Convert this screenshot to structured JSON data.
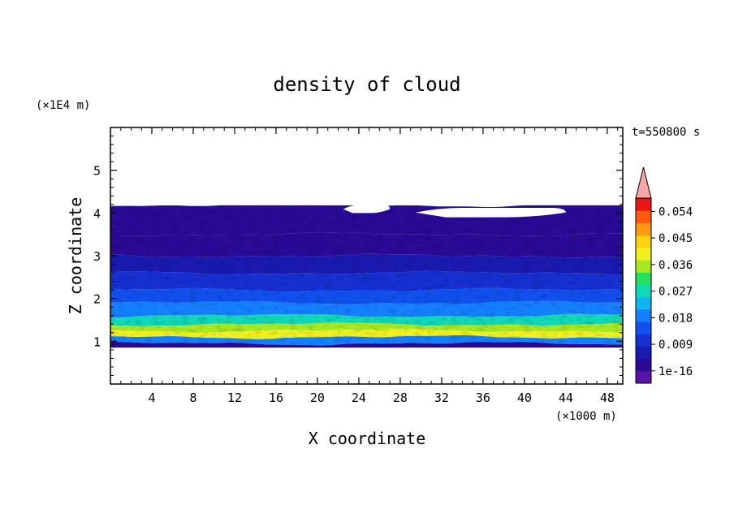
{
  "chart_data": {
    "type": "heatmap",
    "title": "density of cloud",
    "xlabel": "X coordinate",
    "ylabel": "Z coordinate",
    "x_unit": "(×1000 m)",
    "y_unit": "(×1E4 m)",
    "time_label": "t=550800 s",
    "xlim": [
      0,
      49.5
    ],
    "ylim": [
      0,
      6
    ],
    "x_ticks": [
      4,
      8,
      12,
      16,
      20,
      24,
      28,
      32,
      36,
      40,
      44,
      48
    ],
    "y_ticks": [
      1,
      2,
      3,
      4,
      5
    ],
    "colorbar": {
      "levels": [
        1e-16,
        0.0045,
        0.009,
        0.0135,
        0.018,
        0.0225,
        0.027,
        0.0315,
        0.036,
        0.0405,
        0.045,
        0.0495,
        0.054,
        0.0585
      ],
      "tick_labels": [
        "1e-16",
        "0.009",
        "0.018",
        "0.027",
        "0.036",
        "0.045",
        "0.054"
      ],
      "tick_values": [
        1e-16,
        0.009,
        0.018,
        0.027,
        0.036,
        0.045,
        0.054
      ],
      "colors": [
        "#5a12a8",
        "#2a0a96",
        "#1a1ab0",
        "#1630d2",
        "#1050ee",
        "#1580ff",
        "#10b4f0",
        "#10d8b8",
        "#28e060",
        "#a8e820",
        "#f0f020",
        "#ffd010",
        "#ff9a10",
        "#ff5a10",
        "#e81818"
      ],
      "extend_color": "#f4a8a8"
    },
    "cloud_layer": {
      "base_z": 0.85,
      "top_z": 4.18,
      "profile": [
        {
          "z": 0.85,
          "value": 0.003
        },
        {
          "z": 0.95,
          "value": 0.02
        },
        {
          "z": 1.1,
          "value": 0.041
        },
        {
          "z": 1.25,
          "value": 0.036
        },
        {
          "z": 1.4,
          "value": 0.027
        },
        {
          "z": 1.6,
          "value": 0.022
        },
        {
          "z": 1.9,
          "value": 0.016
        },
        {
          "z": 2.2,
          "value": 0.011
        },
        {
          "z": 2.6,
          "value": 0.006
        },
        {
          "z": 3.0,
          "value": 0.003
        },
        {
          "z": 3.5,
          "value": 0.0008
        },
        {
          "z": 4.18,
          "value": 0.0002
        }
      ],
      "clear_patches": [
        {
          "x": [
            22.5,
            27.0
          ],
          "z": [
            4.0,
            4.18
          ]
        },
        {
          "x": [
            29.5,
            44.0
          ],
          "z": [
            3.9,
            4.12
          ]
        }
      ]
    }
  }
}
